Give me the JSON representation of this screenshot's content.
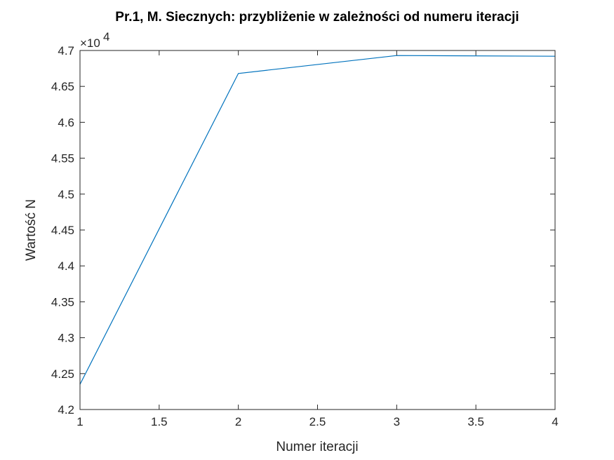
{
  "chart_data": {
    "type": "line",
    "title": "Pr.1, M. Siecznych: przybliżenie w zależności od numeru iteracji",
    "xlabel": "Numer iteracji",
    "ylabel": "Wartość N",
    "y_exponent_label": "×10",
    "y_exponent_power": "4",
    "y_scale_factor": 10000,
    "xlim": [
      1,
      4
    ],
    "ylim": [
      4.2,
      4.7
    ],
    "x_ticks": [
      1,
      1.5,
      2,
      2.5,
      3,
      3.5,
      4
    ],
    "y_ticks": [
      4.2,
      4.25,
      4.3,
      4.35,
      4.4,
      4.45,
      4.5,
      4.55,
      4.6,
      4.65,
      4.7
    ],
    "grid": false,
    "series": [
      {
        "x": [
          1,
          2,
          3,
          4
        ],
        "values": [
          4.235,
          4.668,
          4.693,
          4.692
        ],
        "color": "#0072BD"
      }
    ]
  }
}
